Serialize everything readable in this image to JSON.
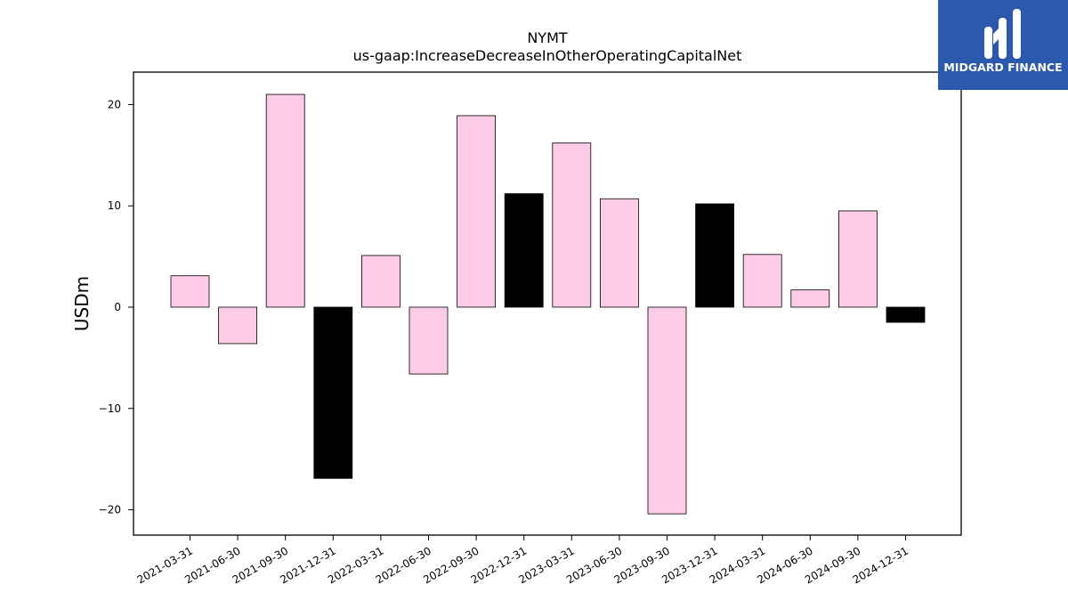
{
  "brand": {
    "name": "MIDGARD FINANCE",
    "logo_icon": "midgard-logo-icon",
    "background_color": "#2b59ad",
    "text_color": "#ffffff"
  },
  "chart_data": {
    "type": "bar",
    "title": "NYMT",
    "subtitle": "us-gaap:IncreaseDecreaseInOtherOperatingCapitalNet",
    "xlabel": "",
    "ylabel": "USDm",
    "categories": [
      "2021-03-31",
      "2021-06-30",
      "2021-09-30",
      "2021-12-31",
      "2022-03-31",
      "2022-06-30",
      "2022-09-30",
      "2022-12-31",
      "2023-03-31",
      "2023-06-30",
      "2023-09-30",
      "2023-12-31",
      "2024-03-31",
      "2024-06-30",
      "2024-09-30",
      "2024-12-31"
    ],
    "values": [
      3.1,
      -3.6,
      21.0,
      -16.9,
      5.1,
      -6.6,
      18.9,
      11.2,
      16.2,
      10.7,
      -20.4,
      10.2,
      5.2,
      1.7,
      9.5,
      -1.5
    ],
    "bar_colors": [
      "#fccbe5",
      "#fccbe5",
      "#fccbe5",
      "#000000",
      "#fccbe5",
      "#fccbe5",
      "#fccbe5",
      "#000000",
      "#fccbe5",
      "#fccbe5",
      "#fccbe5",
      "#000000",
      "#fccbe5",
      "#fccbe5",
      "#fccbe5",
      "#000000"
    ],
    "yticks": [
      -20,
      -10,
      0,
      10,
      20
    ],
    "ylim": [
      -22.5,
      23.2
    ],
    "grid": false,
    "legend": false
  }
}
